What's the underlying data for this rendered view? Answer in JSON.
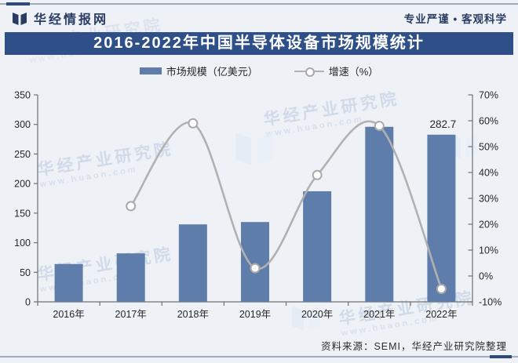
{
  "header": {
    "brand": "华经情报网",
    "tagline": "专业严谨 • 客观科学"
  },
  "title": "2016-2022年中国半导体设备市场规模统计",
  "legend": {
    "bar_label": "市场规模（亿美元）",
    "line_label": "增速（%）"
  },
  "source": "资料来源：SEMI，华经产业研究院整理",
  "watermark": {
    "text": "华经产业研究院",
    "url": "www.huaon.com"
  },
  "colors": {
    "accent_navy": "#2c4a7e",
    "banner": "#2f4f88",
    "bar": "#5f7dab",
    "line": "#b1b1b1",
    "marker_fill": "#ffffff",
    "marker_stroke": "#a9a9a9",
    "axis": "#6f6f6f",
    "text": "#262626",
    "background": "#eef2f7",
    "watermark": "#b9c8db"
  },
  "chart_data": {
    "type": "bar",
    "subtype": "combo-bar-line-dual-axis",
    "title": "2016-2022年中国半导体设备市场规模统计",
    "categories": [
      "2016年",
      "2017年",
      "2018年",
      "2019年",
      "2020年",
      "2021年",
      "2022年"
    ],
    "series": [
      {
        "name": "市场规模（亿美元）",
        "type": "bar",
        "axis": "left",
        "values": [
          64,
          82,
          131,
          135,
          187,
          296,
          282.7
        ]
      },
      {
        "name": "增速（%）",
        "type": "line",
        "axis": "right",
        "values": [
          null,
          27,
          59,
          3,
          39,
          58,
          -5
        ]
      }
    ],
    "value_labels": [
      "",
      "",
      "",
      "",
      "",
      "",
      "282.7"
    ],
    "left_axis": {
      "min": 0,
      "max": 350,
      "step": 50,
      "ticks": [
        "0",
        "50",
        "100",
        "150",
        "200",
        "250",
        "300",
        "350"
      ]
    },
    "right_axis": {
      "min": -10,
      "max": 70,
      "step": 10,
      "ticks": [
        "-10%",
        "0%",
        "10%",
        "20%",
        "30%",
        "40%",
        "50%",
        "60%",
        "70%"
      ]
    },
    "grid": false,
    "legend_position": "top"
  }
}
